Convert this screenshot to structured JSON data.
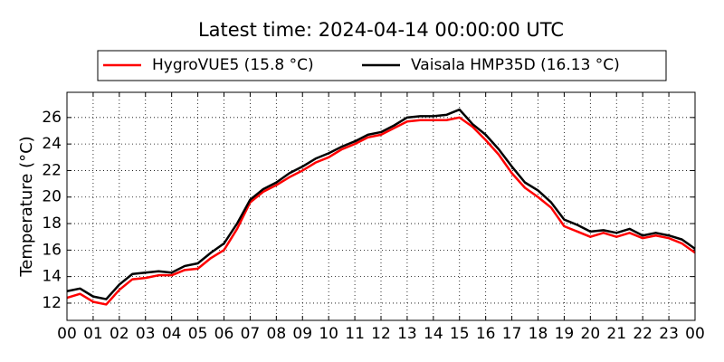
{
  "chart_data": {
    "type": "line",
    "title": "Latest time: 2024-04-14 00:00:00 UTC",
    "ylabel": "Temperature (°C)",
    "x": [
      0,
      0.5,
      1,
      1.5,
      2,
      2.5,
      3,
      3.5,
      4,
      4.5,
      5,
      5.5,
      6,
      6.5,
      7,
      7.5,
      8,
      8.5,
      9,
      9.5,
      10,
      10.5,
      11,
      11.5,
      12,
      12.5,
      13,
      13.5,
      14,
      14.5,
      15,
      15.5,
      16,
      16.5,
      17,
      17.5,
      18,
      18.5,
      19,
      19.5,
      20,
      20.5,
      21,
      21.5,
      22,
      22.5,
      23,
      23.5,
      24
    ],
    "series": [
      {
        "name": "HygroVUE5 (15.8 °C)",
        "color": "#ff0000",
        "values": [
          12.4,
          12.7,
          12.1,
          11.9,
          13.0,
          13.8,
          13.9,
          14.1,
          14.1,
          14.5,
          14.6,
          15.4,
          16.0,
          17.6,
          19.6,
          20.4,
          20.9,
          21.5,
          22.0,
          22.6,
          23.0,
          23.6,
          24.0,
          24.5,
          24.7,
          25.2,
          25.7,
          25.8,
          25.8,
          25.8,
          26.0,
          25.3,
          24.3,
          23.2,
          21.8,
          20.7,
          20.0,
          19.2,
          17.8,
          17.4,
          17.0,
          17.3,
          17.0,
          17.3,
          16.9,
          17.1,
          16.9,
          16.5,
          15.8
        ]
      },
      {
        "name": "Vaisala HMP35D (16.13 °C)",
        "color": "#000000",
        "values": [
          12.9,
          13.1,
          12.5,
          12.3,
          13.4,
          14.2,
          14.3,
          14.4,
          14.3,
          14.8,
          15.0,
          15.8,
          16.5,
          18.0,
          19.8,
          20.6,
          21.1,
          21.8,
          22.3,
          22.9,
          23.3,
          23.8,
          24.2,
          24.7,
          24.9,
          25.4,
          26.0,
          26.1,
          26.1,
          26.2,
          26.6,
          25.5,
          24.7,
          23.6,
          22.3,
          21.1,
          20.5,
          19.6,
          18.3,
          17.9,
          17.4,
          17.5,
          17.3,
          17.6,
          17.1,
          17.3,
          17.1,
          16.8,
          16.1
        ]
      }
    ],
    "xlim": [
      0,
      24
    ],
    "xticks": [
      {
        "value": 0,
        "label": "00"
      },
      {
        "value": 1,
        "label": "01"
      },
      {
        "value": 2,
        "label": "02"
      },
      {
        "value": 3,
        "label": "03"
      },
      {
        "value": 4,
        "label": "04"
      },
      {
        "value": 5,
        "label": "05"
      },
      {
        "value": 6,
        "label": "06"
      },
      {
        "value": 7,
        "label": "07"
      },
      {
        "value": 8,
        "label": "08"
      },
      {
        "value": 9,
        "label": "09"
      },
      {
        "value": 10,
        "label": "10"
      },
      {
        "value": 11,
        "label": "11"
      },
      {
        "value": 12,
        "label": "12"
      },
      {
        "value": 13,
        "label": "13"
      },
      {
        "value": 14,
        "label": "14"
      },
      {
        "value": 15,
        "label": "15"
      },
      {
        "value": 16,
        "label": "16"
      },
      {
        "value": 17,
        "label": "17"
      },
      {
        "value": 18,
        "label": "18"
      },
      {
        "value": 19,
        "label": "19"
      },
      {
        "value": 20,
        "label": "20"
      },
      {
        "value": 21,
        "label": "21"
      },
      {
        "value": 22,
        "label": "22"
      },
      {
        "value": 23,
        "label": "23"
      },
      {
        "value": 24,
        "label": "00"
      }
    ],
    "ylim": [
      10.7,
      27.9
    ],
    "yticks": [
      12,
      14,
      16,
      18,
      20,
      22,
      24,
      26
    ],
    "grid": true,
    "legend": "top"
  }
}
